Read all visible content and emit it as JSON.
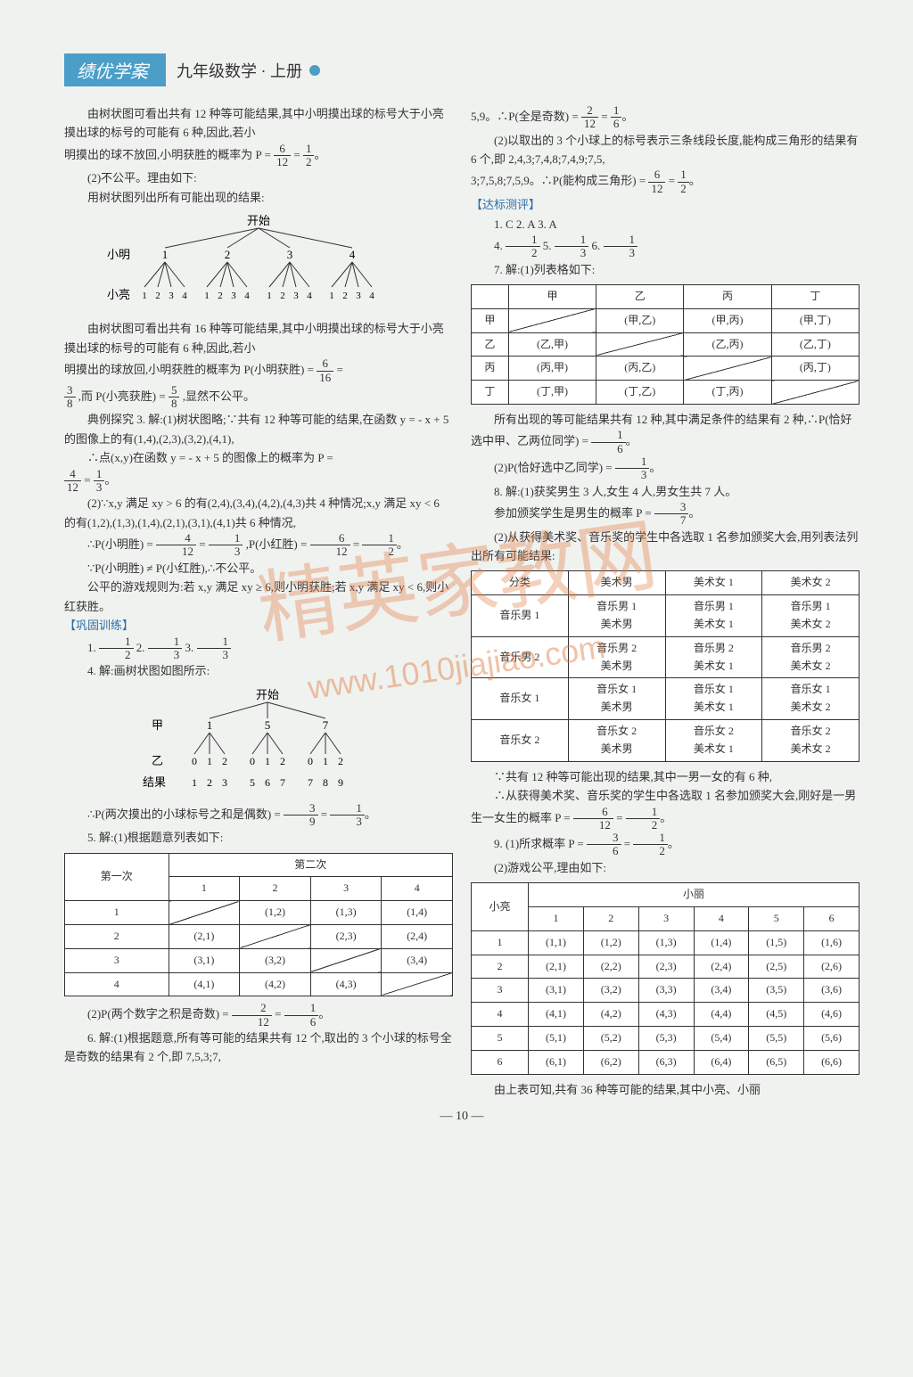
{
  "header": {
    "badge": "绩优学案",
    "title": "九年级数学 · 上册"
  },
  "left": {
    "p1": "由树状图可看出共有 12 种等可能结果,其中小明摸出球的标号大于小亮摸出球的标号的可能有 6 种,因此,若小",
    "p1b_prefix": "明摸出的球不放回,小明获胜的概率为 P = ",
    "p2": "(2)不公平。理由如下:",
    "p3": "用树状图列出所有可能出现的结果:",
    "tree1": {
      "start": "开始",
      "top_label": "小明",
      "bot_label": "小亮",
      "parents": [
        "1",
        "2",
        "3",
        "4"
      ],
      "children": [
        "1 2 3 4",
        "1 2 3 4",
        "1 2 3 4",
        "1 2 3 4"
      ]
    },
    "p4": "由树状图可看出共有 16 种等可能结果,其中小明摸出球的标号大于小亮摸出球的标号的可能有 6 种,因此,若小",
    "p4b": "明摸出的球放回,小明获胜的概率为 P(小明获胜) = ",
    "p5_suffix": ",显然不公平。",
    "p5_mid": ",而 P(小亮获胜) = ",
    "p6": "典例探究 3. 解:(1)树状图略;∵共有 12 种等可能的结果,在函数 y = - x + 5 的图像上的有(1,4),(2,3),(3,2),(4,1),",
    "p7": "∴点(x,y)在函数 y = - x + 5 的图像上的概率为 P = ",
    "p8": "(2)∵x,y 满足 xy > 6 的有(2,4),(3,4),(4,2),(4,3)共 4 种情况;x,y 满足 xy < 6 的有(1,2),(1,3),(1,4),(2,1),(3,1),(4,1)共 6 种情况,",
    "p9a": "∴P(小明胜) = ",
    "p9b": ",P(小红胜) = ",
    "p10": "∵P(小明胜) ≠ P(小红胜),∴不公平。",
    "p11": "公平的游戏规则为:若 x,y 满足 xy ≥ 6,则小明获胜;若 x,y 满足 xy < 6,则小红获胜。",
    "gonggu_label": "【巩固训练】",
    "q1_prefix": "1. ",
    "q2_prefix": "  2. ",
    "q3_prefix": "  3. ",
    "q4": "4. 解:画树状图如图所示:",
    "tree2": {
      "start": "开始",
      "top_label": "甲",
      "bot_label": "乙",
      "result_label": "结果",
      "parents": [
        "1",
        "5",
        "7"
      ],
      "children": [
        "0 1 2",
        "0 1 2",
        "0 1 2"
      ],
      "results": [
        "1 2 3",
        "5 6 7",
        "7 8 9"
      ]
    },
    "p12_prefix": "∴P(两次摸出的小球标号之和是偶数) = ",
    "q5": "5. 解:(1)根据题意列表如下:",
    "table1": {
      "row_head": "第一次",
      "col_head": "第二次",
      "cols": [
        "1",
        "2",
        "3",
        "4"
      ],
      "rows": [
        {
          "h": "1",
          "cells": [
            "",
            "(1,2)",
            "(1,3)",
            "(1,4)"
          ]
        },
        {
          "h": "2",
          "cells": [
            "(2,1)",
            "",
            "(2,3)",
            "(2,4)"
          ]
        },
        {
          "h": "3",
          "cells": [
            "(3,1)",
            "(3,2)",
            "",
            "(3,4)"
          ]
        },
        {
          "h": "4",
          "cells": [
            "(4,1)",
            "(4,2)",
            "(4,3)",
            ""
          ]
        }
      ]
    },
    "p13_prefix": "(2)P(两个数字之积是奇数) = ",
    "q6": "6. 解:(1)根据题意,所有等可能的结果共有 12 个,取出的 3 个小球的标号全是奇数的结果有 2 个,即 7,5,3;7,"
  },
  "right": {
    "p1_prefix": "5,9。∴P(全是奇数) = ",
    "p2": "(2)以取出的 3 个小球上的标号表示三条线段长度,能构成三角形的结果有 6 个,即 2,4,3;7,4,8;7,4,9;7,5,",
    "p2b_prefix": "3;7,5,8;7,5,9。∴P(能构成三角形) = ",
    "dabiao_label": "【达标测评】",
    "q13": "1. C  2. A  3. A",
    "q4_prefix": "4. ",
    "q5_prefix": "  5. ",
    "q6_prefix": "  6. ",
    "q7": "7. 解:(1)列表格如下:",
    "table2": {
      "cols": [
        "",
        "甲",
        "乙",
        "丙",
        "丁"
      ],
      "rows": [
        {
          "h": "甲",
          "cells": [
            "",
            "(甲,乙)",
            "(甲,丙)",
            "(甲,丁)"
          ]
        },
        {
          "h": "乙",
          "cells": [
            "(乙,甲)",
            "",
            "(乙,丙)",
            "(乙,丁)"
          ]
        },
        {
          "h": "丙",
          "cells": [
            "(丙,甲)",
            "(丙,乙)",
            "",
            "(丙,丁)"
          ]
        },
        {
          "h": "丁",
          "cells": [
            "(丁,甲)",
            "(丁,乙)",
            "(丁,丙)",
            ""
          ]
        }
      ]
    },
    "p3_prefix": "所有出现的等可能结果共有 12 种,其中满足条件的结果有 2 种,∴P(恰好选中甲、乙两位同学) = ",
    "p4_prefix": "(2)P(恰好选中乙同学) = ",
    "p5_prefix": "8. 解:(1)获奖男生 3 人,女生 4 人,男女生共 7 人。",
    "p5b_prefix": "参加颁奖学生是男生的概率 P = ",
    "p6": "(2)从获得美术奖、音乐奖的学生中各选取 1 名参加颁奖大会,用列表法列出所有可能结果:",
    "table3": {
      "cols": [
        "分类",
        "美术男",
        "美术女 1",
        "美术女 2"
      ],
      "rows": [
        {
          "h": "音乐男 1",
          "cells": [
            "音乐男 1\n美术男",
            "音乐男 1\n美术女 1",
            "音乐男 1\n美术女 2"
          ]
        },
        {
          "h": "音乐男 2",
          "cells": [
            "音乐男 2\n美术男",
            "音乐男 2\n美术女 1",
            "音乐男 2\n美术女 2"
          ]
        },
        {
          "h": "音乐女 1",
          "cells": [
            "音乐女 1\n美术男",
            "音乐女 1\n美术女 1",
            "音乐女 1\n美术女 2"
          ]
        },
        {
          "h": "音乐女 2",
          "cells": [
            "音乐女 2\n美术男",
            "音乐女 2\n美术女 1",
            "音乐女 2\n美术女 2"
          ]
        }
      ]
    },
    "p7": "∵共有 12 种等可能出现的结果,其中一男一女的有 6 种,",
    "p8_prefix": "∴从获得美术奖、音乐奖的学生中各选取 1 名参加颁奖大会,刚好是一男生一女生的概率 P = ",
    "p9_prefix": "9. (1)所求概率 P = ",
    "p10": "(2)游戏公平,理由如下:",
    "table4": {
      "row_head": "小亮",
      "col_head": "小丽",
      "cols": [
        "1",
        "2",
        "3",
        "4",
        "5",
        "6"
      ],
      "rows": [
        {
          "h": "1",
          "cells": [
            "(1,1)",
            "(1,2)",
            "(1,3)",
            "(1,4)",
            "(1,5)",
            "(1,6)"
          ]
        },
        {
          "h": "2",
          "cells": [
            "(2,1)",
            "(2,2)",
            "(2,3)",
            "(2,4)",
            "(2,5)",
            "(2,6)"
          ]
        },
        {
          "h": "3",
          "cells": [
            "(3,1)",
            "(3,2)",
            "(3,3)",
            "(3,4)",
            "(3,5)",
            "(3,6)"
          ]
        },
        {
          "h": "4",
          "cells": [
            "(4,1)",
            "(4,2)",
            "(4,3)",
            "(4,4)",
            "(4,5)",
            "(4,6)"
          ]
        },
        {
          "h": "5",
          "cells": [
            "(5,1)",
            "(5,2)",
            "(5,3)",
            "(5,4)",
            "(5,5)",
            "(5,6)"
          ]
        },
        {
          "h": "6",
          "cells": [
            "(6,1)",
            "(6,2)",
            "(6,3)",
            "(6,4)",
            "(6,5)",
            "(6,6)"
          ]
        }
      ]
    },
    "p11": "由上表可知,共有 36 种等可能的结果,其中小亮、小丽"
  },
  "fractions": {
    "f6_12": {
      "n": "6",
      "d": "12"
    },
    "f1_2": {
      "n": "1",
      "d": "2"
    },
    "f6_16": {
      "n": "6",
      "d": "16"
    },
    "f3_8": {
      "n": "3",
      "d": "8"
    },
    "f5_8": {
      "n": "5",
      "d": "8"
    },
    "f4_12": {
      "n": "4",
      "d": "12"
    },
    "f1_3": {
      "n": "1",
      "d": "3"
    },
    "f6_12b": {
      "n": "6",
      "d": "12"
    },
    "f3_9": {
      "n": "3",
      "d": "9"
    },
    "f2_12": {
      "n": "2",
      "d": "12"
    },
    "f1_6": {
      "n": "1",
      "d": "6"
    },
    "f3_7": {
      "n": "3",
      "d": "7"
    },
    "f3_6": {
      "n": "3",
      "d": "6"
    }
  },
  "page_num": "— 10 —",
  "watermark1": "精英家教网",
  "watermark2": "www.1010jiajiao.com"
}
